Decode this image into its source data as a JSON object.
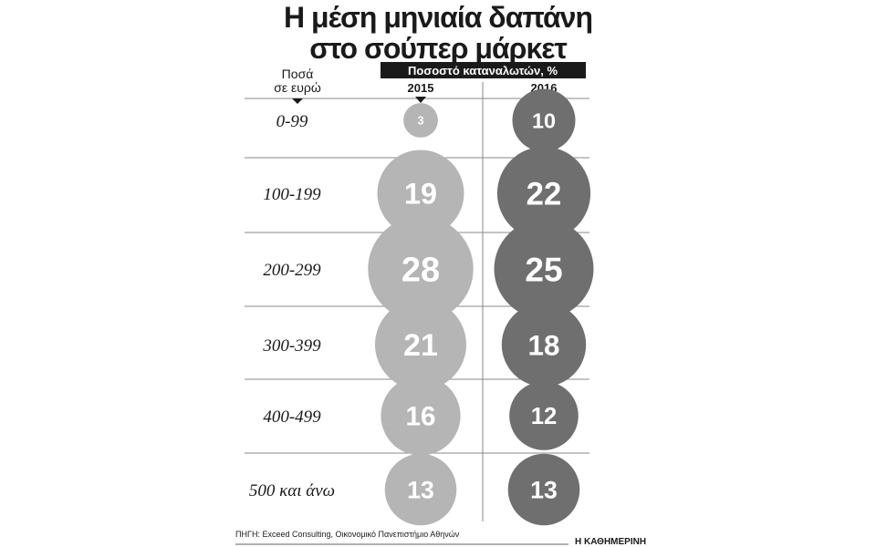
{
  "title": [
    "Η μέση μηνιαία δαπάνη",
    "στο σούπερ μάρκετ"
  ],
  "amount_header": [
    "Ποσά",
    "σε ευρώ"
  ],
  "percent_header": "Ποσοστό καταναλωτών, %",
  "source": "ΠΗΓΗ: Exceed Consulting, Οικονομικό Πανεπιστήμιο Αθηνών",
  "brand": "Η ΚΑΘΗΜΕΡΙΝΗ",
  "colors": {
    "y2015": "#b5b5b5",
    "y2016": "#6f6f6f",
    "banner": "#1a1a1a",
    "rule": "#8a8a8a"
  },
  "chart_data": {
    "type": "bubble",
    "title": "Η μέση μηνιαία δαπάνη στο σούπερ μάρκετ",
    "ylabel": "Ποσά σε ευρώ",
    "xlabel": "Ποσοστό καταναλωτών, %",
    "categories": [
      "0-99",
      "100-199",
      "200-299",
      "300-399",
      "400-499",
      "500 και άνω"
    ],
    "series": [
      {
        "name": "2015",
        "values": [
          3,
          19,
          28,
          21,
          16,
          13
        ]
      },
      {
        "name": "2016",
        "values": [
          10,
          22,
          25,
          18,
          12,
          13
        ]
      }
    ]
  }
}
